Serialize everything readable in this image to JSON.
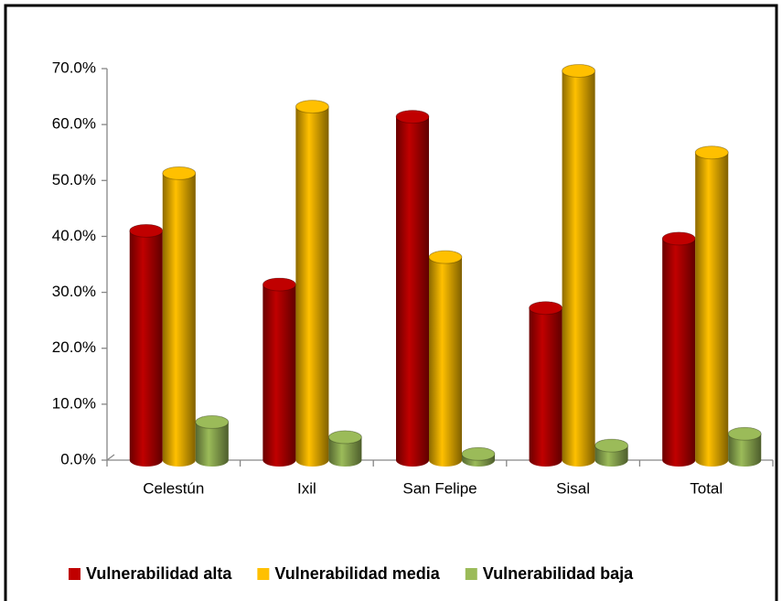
{
  "chart_data": {
    "type": "bar",
    "categories": [
      "Celestún",
      "Ixil",
      "San Felipe",
      "Sisal",
      "Total"
    ],
    "series": [
      {
        "name": "Vulnerabilidad alta",
        "color": "#c00000",
        "values": [
          41.0,
          31.4,
          61.4,
          27.2,
          39.6
        ]
      },
      {
        "name": "Vulnerabilidad media",
        "color": "#ffc000",
        "values": [
          51.3,
          63.2,
          36.3,
          69.6,
          55.0
        ]
      },
      {
        "name": "Vulnerabilidad baja",
        "color": "#9bbb59",
        "values": [
          6.8,
          4.1,
          1.1,
          2.6,
          4.7
        ]
      }
    ],
    "ylim": [
      0,
      70
    ],
    "yticks": [
      {
        "value": 0,
        "label": "0.0%"
      },
      {
        "value": 10,
        "label": "10.0%"
      },
      {
        "value": 20,
        "label": "20.0%"
      },
      {
        "value": 30,
        "label": "30.0%"
      },
      {
        "value": 40,
        "label": "40.0%"
      },
      {
        "value": 50,
        "label": "50.0%"
      },
      {
        "value": 60,
        "label": "60.0%"
      },
      {
        "value": 70,
        "label": "70.0%"
      }
    ],
    "grid": false,
    "legend": "bottom"
  }
}
